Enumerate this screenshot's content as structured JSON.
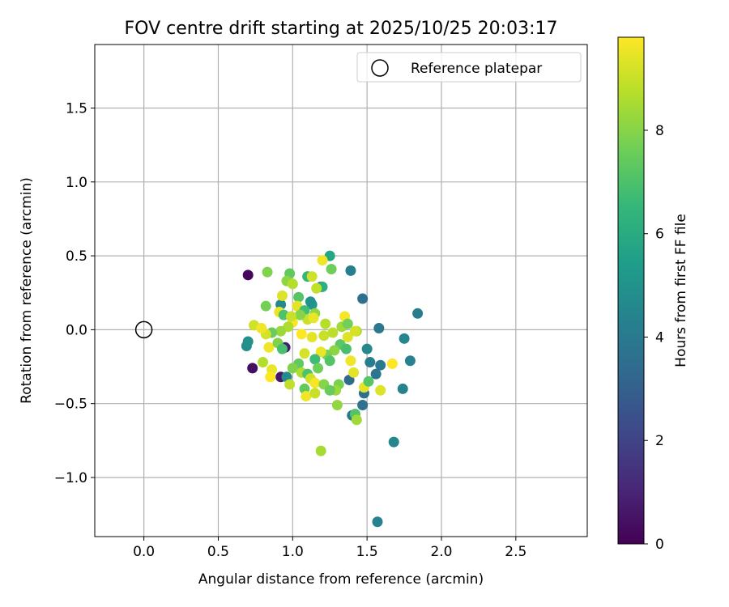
{
  "chart_data": {
    "type": "scatter",
    "title": "FOV centre drift starting at 2025/10/25 20:03:17",
    "xlabel": "Angular distance from reference (arcmin)",
    "ylabel": "Rotation from reference (arcmin)",
    "xlim": [
      -0.33,
      2.98
    ],
    "ylim": [
      -1.4,
      1.93
    ],
    "xticks": [
      0.0,
      0.5,
      1.0,
      1.5,
      2.0,
      2.5
    ],
    "xtick_labels": [
      "0.0",
      "0.5",
      "1.0",
      "1.5",
      "2.0",
      "2.5"
    ],
    "yticks": [
      -1.0,
      -0.5,
      0.0,
      0.5,
      1.0,
      1.5
    ],
    "ytick_labels": [
      "−1.0",
      "−0.5",
      "0.0",
      "0.5",
      "1.0",
      "1.5"
    ],
    "grid": true,
    "legend": {
      "position": "upper right",
      "label": "Reference platepar"
    },
    "reference_point": {
      "x": 0.0,
      "y": 0.0
    },
    "colorbar": {
      "label": "Hours from first FF file",
      "range": [
        0,
        9.8
      ],
      "ticks": [
        0,
        2,
        4,
        6,
        8
      ],
      "tick_labels": [
        "0",
        "2",
        "4",
        "6",
        "8"
      ],
      "colormap": "viridis"
    },
    "colormap_stops": [
      "#440154",
      "#482878",
      "#3e4989",
      "#31688e",
      "#26828e",
      "#1f9e89",
      "#35b779",
      "#6ece58",
      "#b5de2b",
      "#fde725"
    ],
    "points": [
      [
        0.7,
        0.37,
        0.2
      ],
      [
        0.73,
        -0.26,
        0.4
      ],
      [
        0.92,
        -0.32,
        0.6
      ],
      [
        0.95,
        -0.12,
        0.8
      ],
      [
        1.19,
        0.29,
        3.3
      ],
      [
        1.39,
        0.4,
        4.2
      ],
      [
        1.47,
        0.21,
        3.6
      ],
      [
        1.58,
        0.01,
        3.9
      ],
      [
        1.84,
        0.11,
        4.1
      ],
      [
        1.75,
        -0.06,
        4.5
      ],
      [
        1.79,
        -0.21,
        4.3
      ],
      [
        1.59,
        -0.24,
        4.0
      ],
      [
        1.56,
        -0.3,
        3.8
      ],
      [
        1.52,
        -0.22,
        4.2
      ],
      [
        1.5,
        -0.13,
        4.6
      ],
      [
        1.38,
        -0.34,
        3.4
      ],
      [
        1.48,
        -0.43,
        3.5
      ],
      [
        1.47,
        -0.51,
        3.7
      ],
      [
        1.4,
        -0.58,
        3.9
      ],
      [
        1.74,
        -0.4,
        4.4
      ],
      [
        1.68,
        -0.76,
        4.5
      ],
      [
        1.57,
        -1.3,
        4.4
      ],
      [
        0.69,
        -0.11,
        4.8
      ],
      [
        0.7,
        -0.08,
        4.9
      ],
      [
        0.92,
        0.17,
        4.6
      ],
      [
        0.96,
        -0.32,
        4.7
      ],
      [
        1.13,
        0.17,
        5.2
      ],
      [
        1.25,
        0.5,
        5.8
      ],
      [
        1.1,
        0.36,
        6.5
      ],
      [
        1.12,
        0.19,
        5.0
      ],
      [
        1.2,
        0.29,
        6.2
      ],
      [
        1.26,
        0.41,
        7.6
      ],
      [
        0.83,
        0.39,
        7.9
      ],
      [
        0.98,
        0.38,
        7.4
      ],
      [
        0.96,
        0.33,
        8.1
      ],
      [
        1.0,
        0.31,
        8.7
      ],
      [
        1.16,
        0.28,
        8.9
      ],
      [
        1.13,
        0.36,
        9.1
      ],
      [
        1.2,
        0.47,
        9.6
      ],
      [
        1.04,
        0.22,
        7.2
      ],
      [
        0.93,
        0.23,
        9.3
      ],
      [
        0.91,
        0.12,
        9.5
      ],
      [
        0.82,
        0.16,
        7.7
      ],
      [
        0.94,
        0.1,
        7.0
      ],
      [
        1.03,
        0.16,
        9.4
      ],
      [
        1.08,
        0.13,
        6.8
      ],
      [
        1.15,
        0.11,
        8.2
      ],
      [
        1.1,
        0.07,
        9.0
      ],
      [
        1.0,
        0.05,
        9.7
      ],
      [
        0.97,
        0.02,
        8.6
      ],
      [
        0.92,
        -0.01,
        8.3
      ],
      [
        0.86,
        -0.02,
        7.5
      ],
      [
        0.82,
        -0.03,
        9.2
      ],
      [
        0.74,
        0.03,
        9.1
      ],
      [
        0.79,
        0.01,
        9.6
      ],
      [
        1.06,
        -0.03,
        9.8
      ],
      [
        1.13,
        -0.05,
        9.4
      ],
      [
        1.21,
        -0.04,
        9.0
      ],
      [
        1.27,
        -0.02,
        8.8
      ],
      [
        1.33,
        0.02,
        8.4
      ],
      [
        1.35,
        0.09,
        9.7
      ],
      [
        1.43,
        -0.01,
        8.5
      ],
      [
        1.37,
        -0.05,
        9.3
      ],
      [
        1.32,
        -0.1,
        7.3
      ],
      [
        1.36,
        -0.13,
        6.9
      ],
      [
        1.28,
        -0.14,
        8.1
      ],
      [
        1.23,
        -0.17,
        7.8
      ],
      [
        1.25,
        -0.21,
        7.1
      ],
      [
        1.19,
        -0.15,
        9.5
      ],
      [
        1.15,
        -0.2,
        6.7
      ],
      [
        1.08,
        -0.16,
        9.2
      ],
      [
        1.04,
        -0.23,
        7.4
      ],
      [
        1.0,
        -0.26,
        7.9
      ],
      [
        1.06,
        -0.29,
        8.6
      ],
      [
        1.1,
        -0.3,
        7.0
      ],
      [
        1.17,
        -0.26,
        7.6
      ],
      [
        1.12,
        -0.33,
        9.1
      ],
      [
        1.15,
        -0.36,
        9.7
      ],
      [
        1.21,
        -0.37,
        8.0
      ],
      [
        1.31,
        -0.37,
        7.8
      ],
      [
        1.29,
        -0.41,
        8.3
      ],
      [
        1.25,
        -0.41,
        7.5
      ],
      [
        1.08,
        -0.4,
        7.4
      ],
      [
        1.09,
        -0.45,
        9.6
      ],
      [
        1.15,
        -0.43,
        9.0
      ],
      [
        0.98,
        -0.37,
        8.9
      ],
      [
        0.86,
        -0.27,
        9.5
      ],
      [
        0.85,
        -0.32,
        9.8
      ],
      [
        0.8,
        -0.22,
        8.7
      ],
      [
        0.84,
        -0.12,
        9.6
      ],
      [
        0.9,
        -0.09,
        7.9
      ],
      [
        0.93,
        -0.13,
        6.9
      ],
      [
        1.3,
        -0.51,
        8.2
      ],
      [
        1.42,
        -0.57,
        7.1
      ],
      [
        1.43,
        -0.61,
        8.4
      ],
      [
        1.48,
        -0.39,
        9.4
      ],
      [
        1.51,
        -0.35,
        7.2
      ],
      [
        1.59,
        -0.41,
        9.3
      ],
      [
        1.67,
        -0.23,
        9.8
      ],
      [
        1.39,
        -0.21,
        9.6
      ],
      [
        1.41,
        -0.29,
        9.4
      ],
      [
        1.37,
        0.04,
        7.7
      ],
      [
        1.42,
        -0.01,
        9.2
      ],
      [
        1.19,
        -0.82,
        8.5
      ],
      [
        1.14,
        0.08,
        9.5
      ],
      [
        1.05,
        0.1,
        8.0
      ],
      [
        0.99,
        0.09,
        9.0
      ],
      [
        1.22,
        0.04,
        8.7
      ]
    ]
  }
}
